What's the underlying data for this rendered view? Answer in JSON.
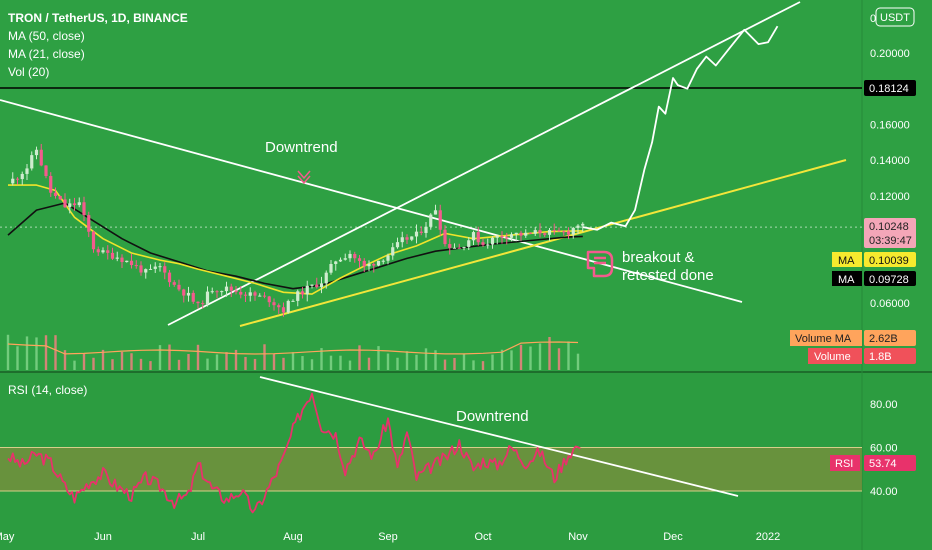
{
  "header": {
    "title": "TRON / TetherUS, 1D, BINANCE",
    "indicators": [
      "MA (50, close)",
      "MA (21, close)",
      "Vol (20)"
    ],
    "currency_button": "USDT"
  },
  "rsi_header": {
    "label": "RSI (14, close)"
  },
  "annotations": {
    "price_downtrend": "Downtrend",
    "rsi_downtrend": "Downtrend",
    "breakout_line1": "breakout &",
    "breakout_line2": "retested done"
  },
  "badges": {
    "level_line": "0.18124",
    "last_price": "0.10248",
    "countdown": "03:39:47",
    "ma21_label": "MA",
    "ma21_value": "0.10039",
    "ma50_label": "MA",
    "ma50_value": "0.09728",
    "volume_ma_label": "Volume MA",
    "volume_ma_value": "2.62B",
    "volume_label": "Volume",
    "volume_value": "1.8B",
    "rsi_label": "RSI",
    "rsi_value": "53.74"
  },
  "colors": {
    "background": "#2ea043",
    "up_candle": "#cfeccf",
    "down_candle": "#f45b8d",
    "ma21": "#f0e42b",
    "ma50": "#111111",
    "trendline": "#ffffff",
    "support_line": "#f3e63a",
    "rsi_line": "#e8326b",
    "rsi_band": "#9a8a3a"
  },
  "chart_data": [
    {
      "type": "candlestick",
      "title": "TRON / TetherUS, 1D, BINANCE",
      "x_tick_labels": [
        "May",
        "Jun",
        "Jul",
        "Aug",
        "Sep",
        "Oct",
        "Nov",
        "Dec",
        "2022"
      ],
      "y_tick_labels": [
        "0",
        "0.20000",
        "0.16000",
        "0.14000",
        "0.12000",
        "0.06000"
      ],
      "ylim": [
        0.045,
        0.215
      ],
      "horizontal_level": 0.18124,
      "last_price": 0.10248,
      "series": [
        {
          "name": "MA (50, close)",
          "last": 0.09728
        },
        {
          "name": "MA (21, close)",
          "last": 0.10039
        }
      ],
      "price_path": {
        "months": [
          0.0,
          0.1,
          0.2,
          0.3,
          0.45,
          0.6,
          0.75,
          0.9,
          1.0,
          1.15,
          1.3,
          1.45,
          1.6,
          1.75,
          1.9,
          2.0,
          2.15,
          2.3,
          2.45,
          2.6,
          2.75,
          2.9,
          3.0,
          3.15,
          3.3,
          3.45,
          3.6,
          3.75,
          3.9,
          4.0,
          4.15,
          4.3,
          4.4,
          4.5,
          4.6,
          4.75,
          4.9,
          5.0,
          5.15,
          5.3,
          5.45,
          5.6,
          5.75,
          5.9,
          6.0,
          6.05
        ],
        "close": [
          0.127,
          0.131,
          0.136,
          0.146,
          0.122,
          0.114,
          0.116,
          0.091,
          0.088,
          0.086,
          0.082,
          0.077,
          0.08,
          0.07,
          0.064,
          0.058,
          0.068,
          0.068,
          0.066,
          0.064,
          0.062,
          0.056,
          0.063,
          0.068,
          0.072,
          0.084,
          0.088,
          0.08,
          0.084,
          0.087,
          0.095,
          0.098,
          0.104,
          0.113,
          0.093,
          0.091,
          0.098,
          0.093,
          0.097,
          0.099,
          0.098,
          0.1,
          0.099,
          0.1,
          0.104,
          0.1025
        ]
      },
      "ma21": {
        "months": [
          0.0,
          0.3,
          0.5,
          0.7,
          1.0,
          1.3,
          1.6,
          1.8,
          2.0,
          2.3,
          2.6,
          2.9,
          3.2,
          3.5,
          3.8,
          4.0,
          4.3,
          4.6,
          4.9,
          5.3,
          5.7,
          6.0,
          6.05
        ],
        "value": [
          0.126,
          0.126,
          0.123,
          0.108,
          0.096,
          0.088,
          0.084,
          0.082,
          0.079,
          0.075,
          0.071,
          0.066,
          0.065,
          0.074,
          0.082,
          0.087,
          0.092,
          0.099,
          0.096,
          0.098,
          0.1,
          0.1004,
          0.10039
        ]
      },
      "ma50": {
        "months": [
          0.0,
          0.3,
          0.6,
          0.9,
          1.2,
          1.5,
          1.8,
          2.1,
          2.4,
          2.7,
          3.0,
          3.3,
          3.6,
          3.9,
          4.2,
          4.5,
          4.8,
          5.1,
          5.5,
          5.9,
          6.05
        ],
        "value": [
          0.098,
          0.112,
          0.116,
          0.106,
          0.096,
          0.088,
          0.083,
          0.078,
          0.075,
          0.071,
          0.068,
          0.07,
          0.075,
          0.08,
          0.085,
          0.089,
          0.091,
          0.093,
          0.095,
          0.097,
          0.09728
        ]
      },
      "projection": {
        "months": [
          6.05,
          6.2,
          6.35,
          6.5,
          6.6,
          6.7,
          6.78,
          6.85,
          6.92,
          7.0,
          7.05,
          7.15,
          7.25,
          7.35,
          7.45,
          7.6,
          7.75,
          7.9,
          8.0,
          8.1
        ],
        "value": [
          0.1025,
          0.101,
          0.105,
          0.103,
          0.112,
          0.135,
          0.15,
          0.17,
          0.166,
          0.186,
          0.182,
          0.18,
          0.191,
          0.198,
          0.193,
          0.203,
          0.213,
          0.205,
          0.206,
          0.215
        ]
      },
      "volume": {
        "volume_ma_last": "2.62B",
        "volume_last": "1.8B"
      }
    },
    {
      "type": "line",
      "title": "RSI (14, close)",
      "y_tick_labels": [
        "80.00",
        "60.00",
        "40.00"
      ],
      "ylim": [
        25,
        95
      ],
      "band": [
        40,
        60
      ],
      "last": 53.74,
      "series": [
        {
          "name": "RSI (14, close)",
          "months": [
            0.0,
            0.15,
            0.3,
            0.45,
            0.6,
            0.7,
            0.85,
            1.0,
            1.15,
            1.3,
            1.45,
            1.6,
            1.75,
            1.9,
            2.0,
            2.15,
            2.3,
            2.45,
            2.6,
            2.75,
            2.9,
            3.0,
            3.1,
            3.2,
            3.3,
            3.45,
            3.55,
            3.7,
            3.85,
            4.0,
            4.1,
            4.2,
            4.3,
            4.45,
            4.6,
            4.75,
            4.9,
            5.0,
            5.15,
            5.3,
            5.45,
            5.6,
            5.75,
            5.9,
            6.0,
            6.05
          ],
          "values": [
            56,
            52,
            57,
            53,
            42,
            37,
            44,
            48,
            42,
            38,
            46,
            42,
            35,
            38,
            52,
            41,
            36,
            40,
            30,
            42,
            55,
            68,
            78,
            86,
            70,
            66,
            50,
            63,
            56,
            73,
            50,
            67,
            46,
            51,
            55,
            62,
            50,
            54,
            52,
            60,
            53,
            58,
            46,
            57,
            61,
            53.74
          ]
        }
      ]
    }
  ]
}
